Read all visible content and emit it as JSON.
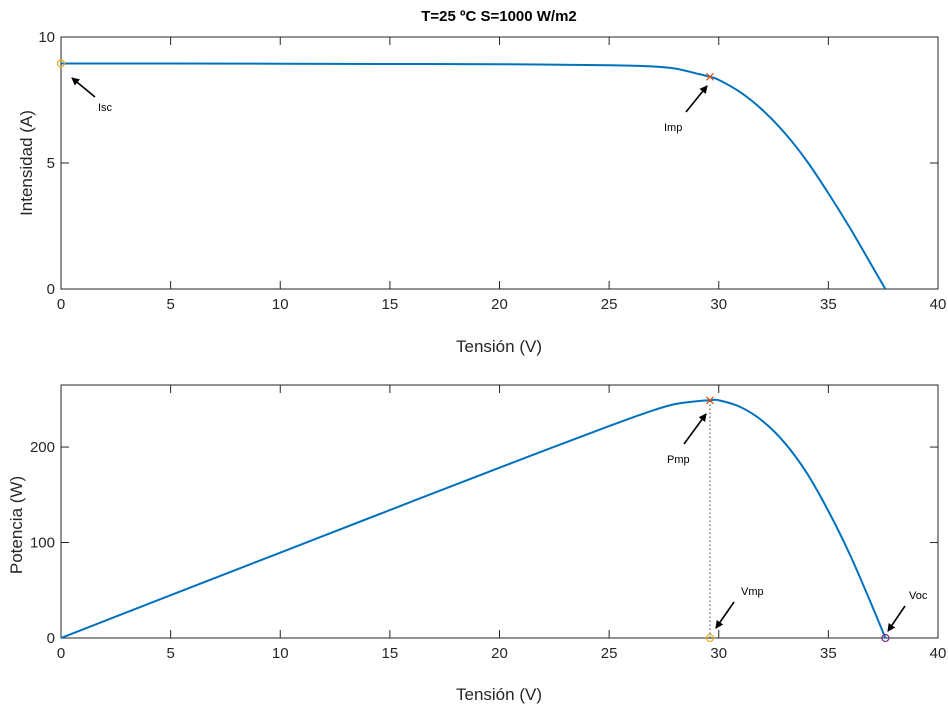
{
  "chart_data": [
    {
      "type": "line",
      "title": "T=25 ºC S=1000 W/m2",
      "xlabel": "Tensión (V)",
      "ylabel": "Intensidad (A)",
      "xlim": [
        0,
        40
      ],
      "ylim": [
        0,
        10
      ],
      "xticks": [
        0,
        5,
        10,
        15,
        20,
        25,
        30,
        35,
        40
      ],
      "yticks": [
        0,
        5,
        10
      ],
      "grid": false,
      "line_color": "#0072BD",
      "series": [
        {
          "x": [
            0,
            5,
            10,
            15,
            20,
            25,
            27,
            28,
            29,
            29.6,
            30,
            31,
            32,
            33,
            34,
            35,
            36,
            37,
            37.6
          ],
          "y": [
            8.95,
            8.95,
            8.94,
            8.93,
            8.92,
            8.88,
            8.83,
            8.75,
            8.55,
            8.42,
            8.3,
            7.8,
            7.1,
            6.2,
            5.1,
            3.8,
            2.4,
            0.9,
            0
          ]
        }
      ],
      "markers": [
        {
          "label": "Isc",
          "x": 0,
          "y": 8.95,
          "symbol": "circle",
          "color": "#EDB120"
        },
        {
          "label": "Imp",
          "x": 29.6,
          "y": 8.42,
          "symbol": "cross",
          "color": "#D95319"
        }
      ]
    },
    {
      "type": "line",
      "title": "",
      "xlabel": "Tensión (V)",
      "ylabel": "Potencia (W)",
      "xlim": [
        0,
        40
      ],
      "ylim": [
        0,
        265
      ],
      "xticks": [
        0,
        5,
        10,
        15,
        20,
        25,
        30,
        35,
        40
      ],
      "yticks": [
        0,
        100,
        200
      ],
      "grid": false,
      "line_color": "#0072BD",
      "series": [
        {
          "x": [
            0,
            5,
            10,
            15,
            20,
            25,
            27,
            28,
            29,
            29.6,
            30,
            31,
            32,
            33,
            34,
            35,
            36,
            37,
            37.6
          ],
          "y": [
            0,
            44.8,
            89.4,
            134,
            178.4,
            222,
            238.4,
            245,
            248,
            249,
            249,
            241.8,
            227.2,
            204.6,
            173.4,
            133,
            86.4,
            33.3,
            0
          ]
        }
      ],
      "markers": [
        {
          "label": "Pmp",
          "x": 29.6,
          "y": 249,
          "symbol": "cross",
          "color": "#D95319"
        },
        {
          "label": "Vmp",
          "x": 29.6,
          "y": 0,
          "symbol": "circle",
          "color": "#EDB120"
        },
        {
          "label": "Voc",
          "x": 37.6,
          "y": 0,
          "symbol": "circle",
          "color": "#7E2F8E"
        }
      ],
      "vline": {
        "x": 29.6,
        "from": 0,
        "to": 249,
        "style": "dotted"
      }
    }
  ]
}
